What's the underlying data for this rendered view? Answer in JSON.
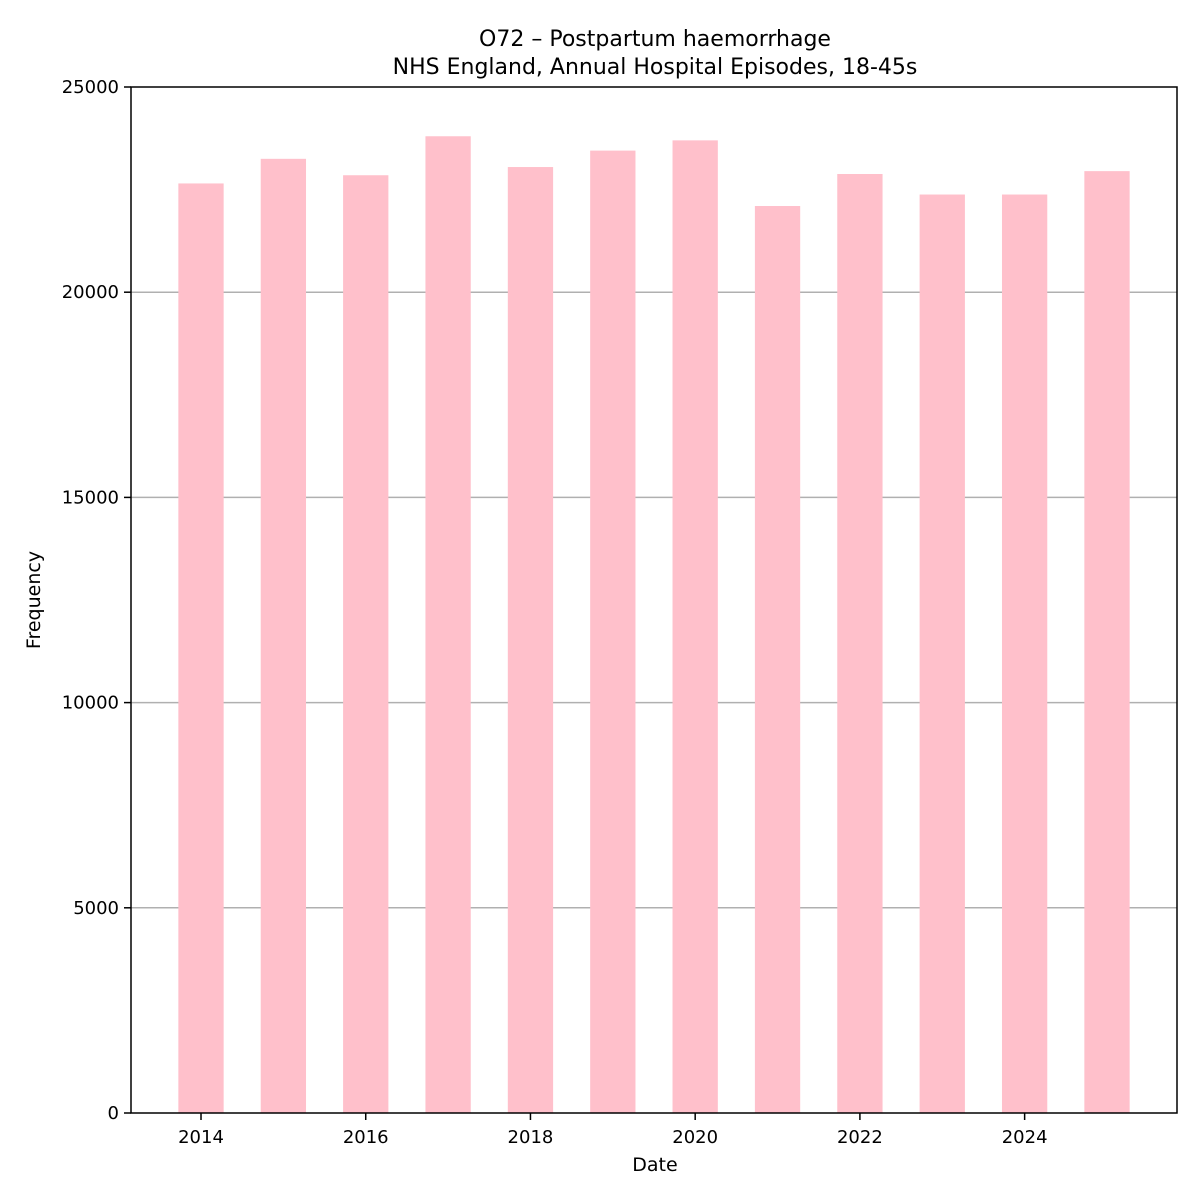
{
  "chart_data": {
    "type": "bar",
    "title": "O72 – Postpartum haemorrhage",
    "subtitle": "NHS England, Annual Hospital Episodes, 18-45s",
    "xlabel": "Date",
    "ylabel": "Frequency",
    "categories": [
      "2014",
      "2015",
      "2016",
      "2017",
      "2018",
      "2019",
      "2020",
      "2021",
      "2022",
      "2023",
      "2024",
      "2025"
    ],
    "values": [
      22650,
      23250,
      22850,
      23800,
      23050,
      23450,
      23700,
      22100,
      22880,
      22380,
      22380,
      22950
    ],
    "xlim": [
      2013.15,
      2025.85
    ],
    "ylim": [
      0,
      25000
    ],
    "x_ticks": [
      "2014",
      "2016",
      "2018",
      "2020",
      "2022",
      "2024"
    ],
    "y_ticks": [
      "0",
      "5000",
      "10000",
      "15000",
      "20000",
      "25000"
    ],
    "grid": "horizontal",
    "bar_color": "#ffc0cb",
    "legend": "none"
  }
}
